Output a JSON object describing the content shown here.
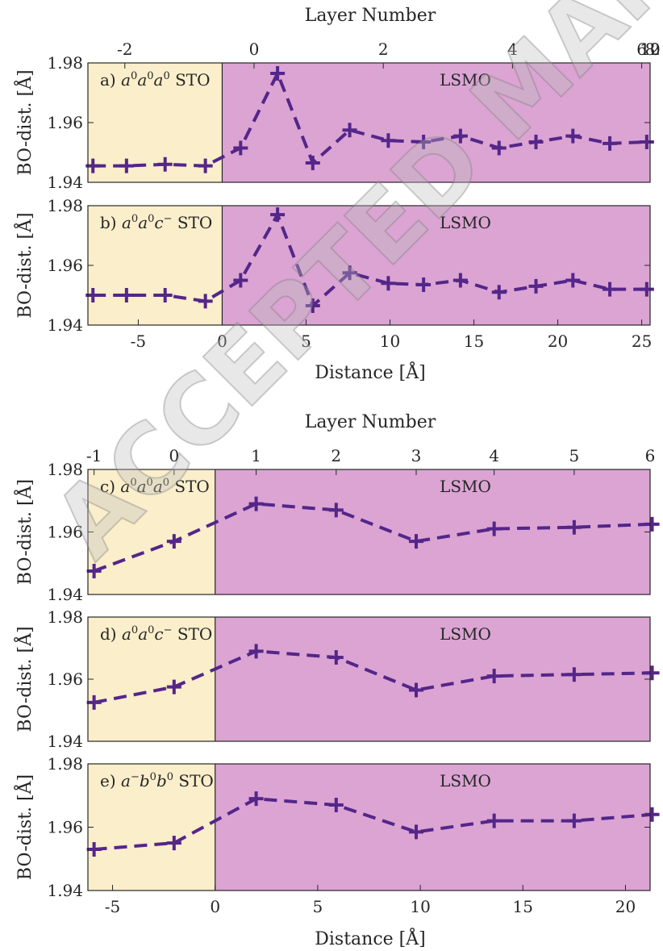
{
  "watermark": "ACCEPTED MANUSCRIPT",
  "colors": {
    "sto_fill": "#fbeecb",
    "lsmo_fill": "#dba4d3",
    "series": "#54268a",
    "axis": "#262626"
  },
  "figure_top": {
    "top_axis_label": "Layer Number",
    "bottom_axis_label": "Distance [Å]"
  },
  "figure_bottom": {
    "top_axis_label": "Layer Number",
    "bottom_axis_label": "Distance [Å]"
  },
  "chart_data": [
    {
      "type": "line",
      "panel": "a",
      "label_prefix": "a) ",
      "label_super": [
        "0",
        "0",
        "0"
      ],
      "label_base": [
        "a",
        "a",
        "a"
      ],
      "label_suffix": " STO",
      "region_label": "LSMO",
      "ylabel": "BO-dist. [Å]",
      "xlabel_top": "Layer Number",
      "xlim": [
        -8.0,
        25.5
      ],
      "ylim": [
        1.94,
        1.98
      ],
      "yticks": [
        1.94,
        1.96,
        1.98
      ],
      "top_ticks": [
        -2,
        0,
        2,
        4,
        6,
        8,
        10,
        12
      ],
      "top_tick_positions_distance": [
        -5.8,
        1.9,
        9.6,
        17.3,
        25.0,
        32.7,
        40.4,
        48.1
      ],
      "interface_x": 0.0,
      "x": [
        -7.7,
        -5.7,
        -3.4,
        -1.0,
        1.1,
        3.3,
        5.4,
        7.6,
        9.9,
        12.0,
        14.2,
        16.5,
        18.7,
        20.9,
        23.1,
        25.3
      ],
      "y": [
        1.9455,
        1.9455,
        1.946,
        1.9455,
        1.9515,
        1.9765,
        1.9465,
        1.9575,
        1.954,
        1.9535,
        1.9555,
        1.9515,
        1.9535,
        1.9555,
        1.953,
        1.9535
      ],
      "grid": false
    },
    {
      "type": "line",
      "panel": "b",
      "label_prefix": "b) ",
      "label_super": [
        "0",
        "0",
        "−"
      ],
      "label_base": [
        "a",
        "a",
        "c"
      ],
      "label_suffix": " STO",
      "region_label": "LSMO",
      "ylabel": "BO-dist. [Å]",
      "xlabel": "Distance [Å]",
      "xlim": [
        -8.0,
        25.5
      ],
      "ylim": [
        1.94,
        1.98
      ],
      "yticks": [
        1.94,
        1.96,
        1.98
      ],
      "xticks": [
        -5,
        0,
        5,
        10,
        15,
        20,
        25
      ],
      "interface_x": 0.0,
      "x": [
        -7.7,
        -5.7,
        -3.4,
        -1.0,
        1.1,
        3.3,
        5.4,
        7.6,
        9.9,
        12.0,
        14.2,
        16.5,
        18.7,
        20.9,
        23.1,
        25.3
      ],
      "y": [
        1.95,
        1.95,
        1.95,
        1.948,
        1.955,
        1.977,
        1.9465,
        1.9575,
        1.954,
        1.9535,
        1.955,
        1.951,
        1.953,
        1.955,
        1.952,
        1.952
      ],
      "grid": false
    },
    {
      "type": "line",
      "panel": "c",
      "label_prefix": "c) ",
      "label_super": [
        "0",
        "0",
        "0"
      ],
      "label_base": [
        "a",
        "a",
        "a"
      ],
      "label_suffix": " STO",
      "region_label": "LSMO",
      "ylabel": "BO-dist. [Å]",
      "xlabel_top": "Layer Number",
      "xlim": [
        -6.2,
        21.2
      ],
      "ylim": [
        1.94,
        1.98
      ],
      "yticks": [
        1.94,
        1.96,
        1.98
      ],
      "top_ticks": [
        -1,
        0,
        1,
        2,
        3,
        4,
        5,
        6
      ],
      "top_tick_positions_distance": [
        -5.9,
        -2.0,
        2.0,
        5.9,
        9.8,
        13.6,
        17.5,
        21.3
      ],
      "interface_x": 0.0,
      "x": [
        -5.9,
        -2.0,
        2.0,
        5.9,
        9.8,
        13.6,
        17.5,
        21.3
      ],
      "y": [
        1.9475,
        1.957,
        1.969,
        1.967,
        1.957,
        1.961,
        1.9615,
        1.9625
      ],
      "grid": false
    },
    {
      "type": "line",
      "panel": "d",
      "label_prefix": "d) ",
      "label_super": [
        "0",
        "0",
        "−"
      ],
      "label_base": [
        "a",
        "a",
        "c"
      ],
      "label_suffix": " STO",
      "region_label": "LSMO",
      "ylabel": "BO-dist. [Å]",
      "xlim": [
        -6.2,
        21.2
      ],
      "ylim": [
        1.94,
        1.98
      ],
      "yticks": [
        1.94,
        1.96,
        1.98
      ],
      "interface_x": 0.0,
      "x": [
        -5.9,
        -2.0,
        2.0,
        5.9,
        9.8,
        13.6,
        17.5,
        21.3
      ],
      "y": [
        1.9525,
        1.9575,
        1.969,
        1.967,
        1.9565,
        1.961,
        1.9615,
        1.962
      ],
      "grid": false
    },
    {
      "type": "line",
      "panel": "e",
      "label_prefix": "e) ",
      "label_super": [
        "−",
        "0",
        "0"
      ],
      "label_base": [
        "a",
        "b",
        "b"
      ],
      "label_suffix": " STO",
      "region_label": "LSMO",
      "ylabel": "BO-dist. [Å]",
      "xlabel": "Distance [Å]",
      "xlim": [
        -6.2,
        21.2
      ],
      "ylim": [
        1.94,
        1.98
      ],
      "yticks": [
        1.94,
        1.96,
        1.98
      ],
      "xticks": [
        -5,
        0,
        5,
        10,
        15,
        20
      ],
      "interface_x": 0.0,
      "x": [
        -5.9,
        -2.0,
        2.0,
        5.9,
        9.8,
        13.6,
        17.5,
        21.3
      ],
      "y": [
        1.953,
        1.955,
        1.969,
        1.967,
        1.9585,
        1.962,
        1.962,
        1.964
      ],
      "grid": false
    }
  ]
}
